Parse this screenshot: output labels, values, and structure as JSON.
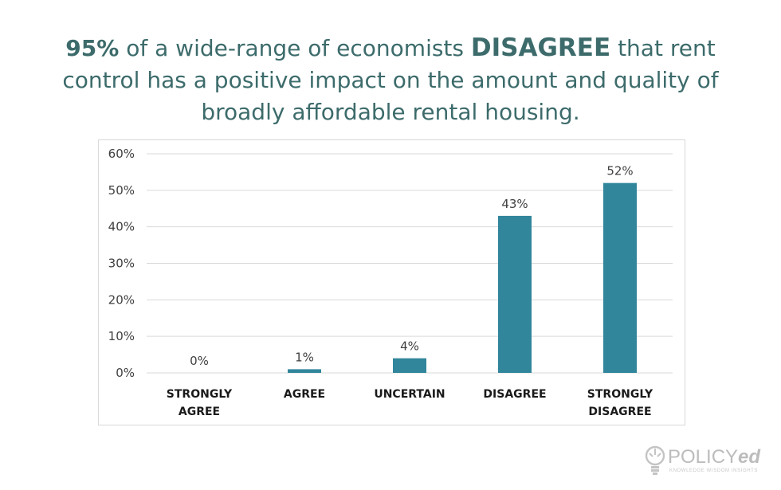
{
  "headline": {
    "pct": "95%",
    "part1": " of a wide-range of economists ",
    "emph": "DISAGREE",
    "part2": " that rent control has a positive impact on the amount and quality of broadly affordable rental housing."
  },
  "chart_data": {
    "type": "bar",
    "categories": [
      "STRONGLY AGREE",
      "AGREE",
      "UNCERTAIN",
      "DISAGREE",
      "STRONGLY DISAGREE"
    ],
    "category_lines": [
      [
        "STRONGLY",
        "AGREE"
      ],
      [
        "AGREE"
      ],
      [
        "UNCERTAIN"
      ],
      [
        "DISAGREE"
      ],
      [
        "STRONGLY",
        "DISAGREE"
      ]
    ],
    "values": [
      0,
      1,
      4,
      43,
      52
    ],
    "data_labels": [
      "0%",
      "1%",
      "4%",
      "43%",
      "52%"
    ],
    "ylim": [
      0,
      60
    ],
    "yticks": [
      0,
      10,
      20,
      30,
      40,
      50,
      60
    ],
    "ytick_labels": [
      "0%",
      "10%",
      "20%",
      "30%",
      "40%",
      "50%",
      "60%"
    ],
    "grid": true,
    "bar_color": "#31869b"
  },
  "logo": {
    "name_plain": "POLICY",
    "name_em": "ed",
    "tagline": "KNOWLEDGE WISDOM INSIGHTS"
  }
}
